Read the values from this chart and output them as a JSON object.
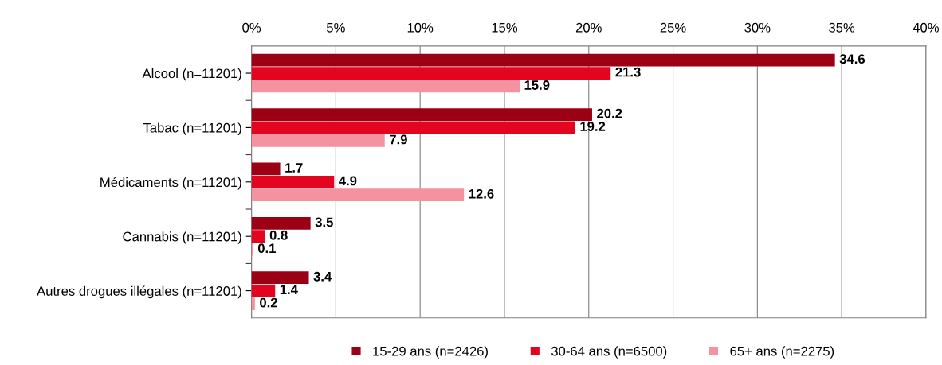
{
  "chart_data": {
    "type": "bar",
    "orientation": "horizontal",
    "categories": [
      "Alcool (n=11201)",
      "Tabac (n=11201)",
      "Médicaments (n=11201)",
      "Cannabis (n=11201)",
      "Autres drogues illégales (n=11201)"
    ],
    "series": [
      {
        "name": "15-29 ans (n=2426)",
        "color": "#9b0015",
        "values": [
          34.6,
          20.2,
          1.7,
          3.5,
          3.4
        ]
      },
      {
        "name": "30-64 ans (n=6500)",
        "color": "#e3051f",
        "values": [
          21.3,
          19.2,
          4.9,
          0.8,
          1.4
        ]
      },
      {
        "name": "65+ ans (n=2275)",
        "color": "#f5929f",
        "values": [
          15.9,
          7.9,
          12.6,
          0.1,
          0.2
        ]
      }
    ],
    "xlim": [
      0,
      40
    ],
    "xticks": [
      {
        "value": 0,
        "label": "0%"
      },
      {
        "value": 5,
        "label": "5%"
      },
      {
        "value": 10,
        "label": "10%"
      },
      {
        "value": 15,
        "label": "15%"
      },
      {
        "value": 20,
        "label": "20%"
      },
      {
        "value": 25,
        "label": "25%"
      },
      {
        "value": 30,
        "label": "30%"
      },
      {
        "value": 35,
        "label": "35%"
      },
      {
        "value": 40,
        "label": "40%"
      }
    ],
    "grid": "x",
    "legend": "bottom",
    "data_labels": true
  }
}
